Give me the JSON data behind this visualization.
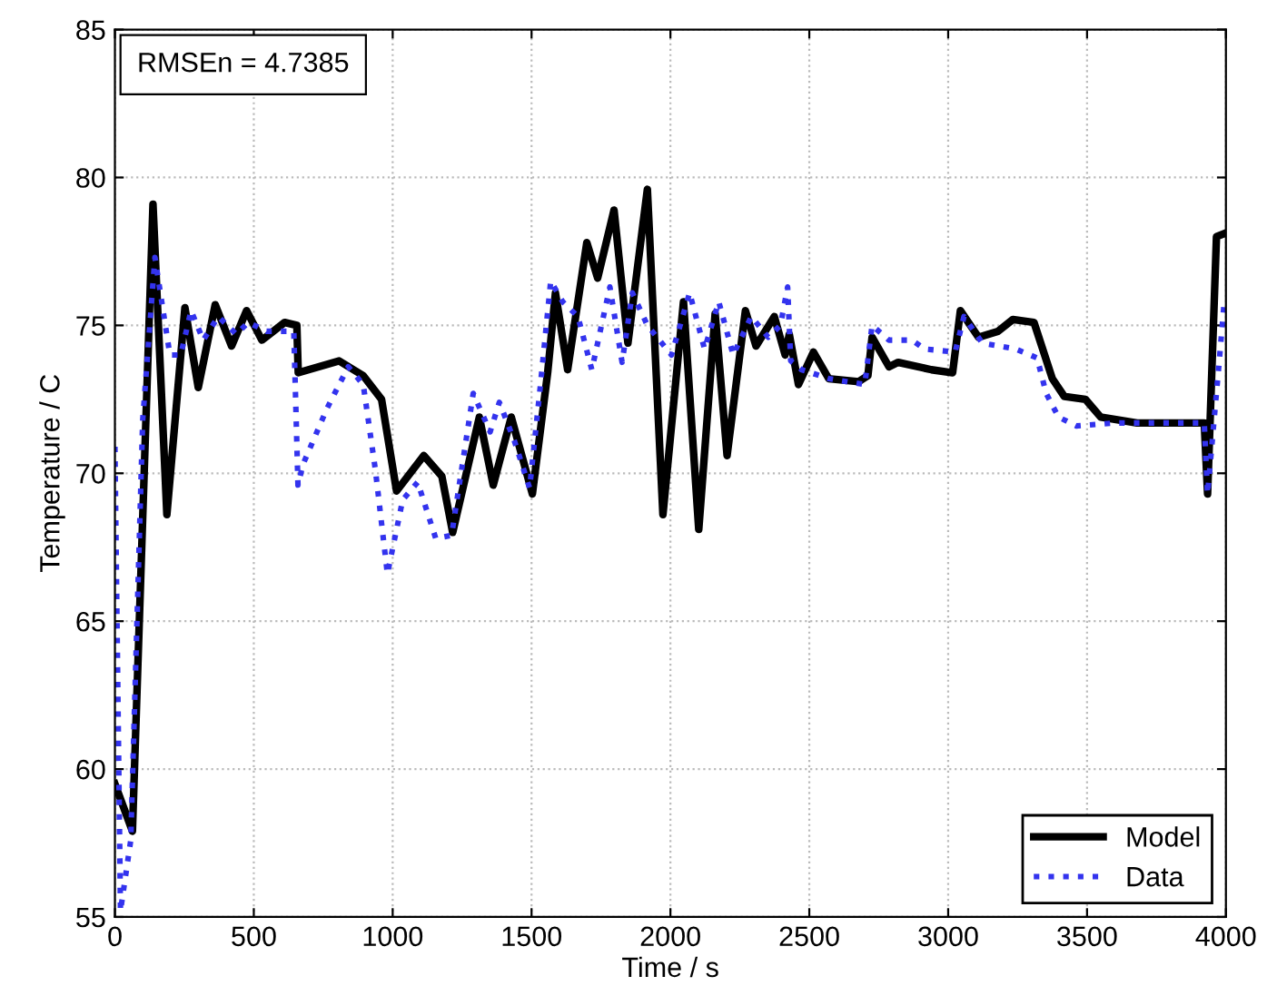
{
  "chart_data": {
    "type": "line",
    "xlabel": "Time / s",
    "ylabel": "Temperature / C",
    "annotations": [
      "RMSEn = 4.7385"
    ],
    "xlim": [
      0,
      4000
    ],
    "ylim": [
      55,
      85
    ],
    "xticks": [
      0,
      500,
      1000,
      1500,
      2000,
      2500,
      3000,
      3500,
      4000
    ],
    "yticks": [
      55,
      60,
      65,
      70,
      75,
      80,
      85
    ],
    "grid": true,
    "legend": "bottom right",
    "marker": "none",
    "series": [
      {
        "name": "Model",
        "color": "#000000",
        "line_style": "solid",
        "x": [
          0,
          63,
          137,
          187,
          252,
          300,
          361,
          420,
          474,
          529,
          611,
          655,
          660,
          807,
          894,
          960,
          1014,
          1112,
          1177,
          1216,
          1312,
          1362,
          1427,
          1503,
          1558,
          1586,
          1630,
          1699,
          1738,
          1797,
          1847,
          1917,
          1973,
          2047,
          2102,
          2161,
          2204,
          2270,
          2308,
          2374,
          2413,
          2428,
          2461,
          2515,
          2570,
          2678,
          2711,
          2726,
          2787,
          2820,
          2940,
          3016,
          3044,
          3109,
          3179,
          3233,
          3309,
          3375,
          3418,
          3494,
          3549,
          3680,
          3922,
          3934,
          3966,
          3993
        ],
        "values": [
          59.5,
          57.9,
          79.1,
          68.6,
          75.6,
          72.9,
          75.7,
          74.3,
          75.5,
          74.5,
          75.1,
          75.0,
          73.4,
          73.8,
          73.3,
          72.5,
          69.4,
          70.6,
          69.9,
          68.0,
          71.9,
          69.6,
          71.9,
          69.3,
          73.4,
          76.1,
          73.5,
          77.8,
          76.6,
          78.9,
          74.4,
          79.6,
          68.6,
          75.8,
          68.1,
          75.4,
          70.6,
          75.5,
          74.3,
          75.3,
          74.0,
          74.7,
          73.0,
          74.1,
          73.2,
          73.1,
          73.3,
          74.6,
          73.6,
          73.75,
          73.5,
          73.4,
          75.5,
          74.6,
          74.8,
          75.2,
          75.1,
          73.2,
          72.6,
          72.5,
          71.9,
          71.7,
          71.7,
          69.3,
          78.0,
          78.1
        ]
      },
      {
        "name": "Data",
        "color": "#3333ee",
        "line_style": "dotted",
        "x": [
          0,
          20,
          57,
          100,
          144,
          198,
          237,
          274,
          318,
          372,
          437,
          480,
          546,
          644,
          659,
          677,
          764,
          840,
          894,
          938,
          981,
          1036,
          1090,
          1155,
          1212,
          1290,
          1351,
          1384,
          1438,
          1493,
          1529,
          1569,
          1612,
          1667,
          1717,
          1782,
          1826,
          1863,
          1917,
          2004,
          2069,
          2123,
          2174,
          2226,
          2291,
          2352,
          2396,
          2422,
          2433,
          2473,
          2570,
          2700,
          2726,
          2787,
          2870,
          2915,
          3025,
          3057,
          3123,
          3244,
          3320,
          3353,
          3397,
          3462,
          3600,
          3922,
          3934,
          3977,
          3993
        ],
        "values": [
          70.9,
          55.2,
          57.6,
          71.8,
          77.3,
          74.0,
          74.0,
          75.5,
          74.5,
          75.3,
          74.7,
          75.1,
          74.8,
          74.8,
          69.6,
          70.3,
          72.2,
          73.6,
          73.0,
          70.1,
          66.6,
          69.1,
          69.7,
          67.8,
          67.9,
          72.7,
          71.4,
          72.4,
          71.1,
          69.5,
          72.7,
          76.5,
          75.8,
          75.3,
          73.5,
          76.3,
          73.75,
          76.1,
          75.0,
          74.0,
          76.1,
          74.2,
          75.8,
          74.0,
          75.3,
          74.6,
          75.0,
          76.3,
          73.8,
          73.5,
          73.2,
          73.0,
          75.0,
          74.5,
          74.5,
          74.2,
          74.1,
          75.3,
          74.4,
          74.2,
          73.9,
          72.7,
          71.9,
          71.6,
          71.7,
          71.7,
          69.3,
          73.9,
          75.7
        ]
      }
    ]
  }
}
